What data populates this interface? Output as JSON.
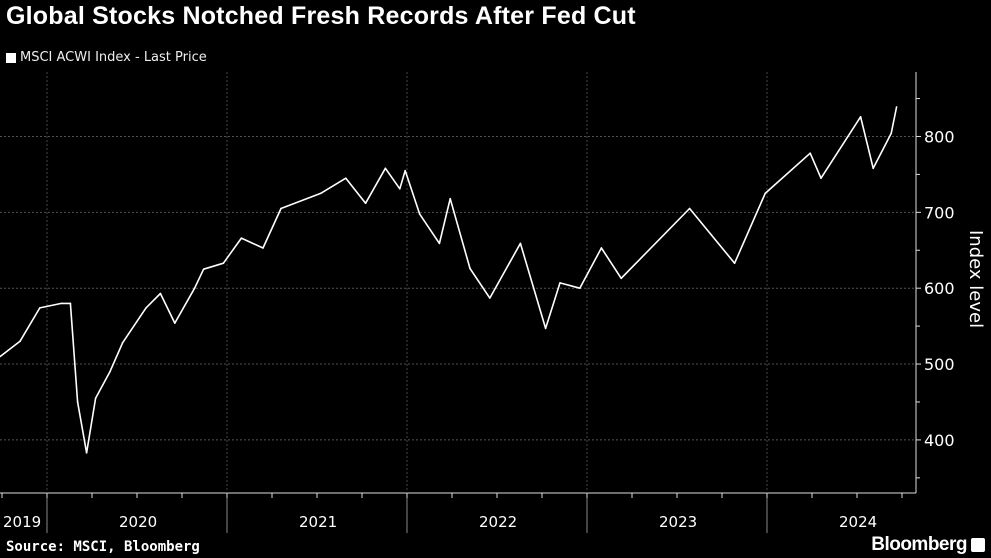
{
  "chart_data": {
    "type": "line",
    "title": "Global Stocks Notched Fresh Records After Fed Cut",
    "legend": [
      {
        "label": "MSCI ACWI Index - Last Price",
        "color": "#ffffff"
      }
    ],
    "legend_placement": "top-left",
    "ylabel": "Index level",
    "xlabel": "",
    "ylim": [
      330,
      885
    ],
    "yticks": [
      400,
      500,
      600,
      700,
      800
    ],
    "xlim": [
      2019.74,
      2024.85
    ],
    "xtick_labels": [
      "2019",
      "2020",
      "2021",
      "2022",
      "2023",
      "2024"
    ],
    "grid": true,
    "series": [
      {
        "name": "MSCI ACWI Index - Last Price",
        "x": [
          2019.74,
          2019.85,
          2019.96,
          2020.08,
          2020.13,
          2020.17,
          2020.22,
          2020.27,
          2020.35,
          2020.42,
          2020.55,
          2020.63,
          2020.71,
          2020.82,
          2020.87,
          2020.98,
          2021.08,
          2021.2,
          2021.3,
          2021.52,
          2021.66,
          2021.77,
          2021.88,
          2021.96,
          2021.99,
          2022.07,
          2022.18,
          2022.24,
          2022.35,
          2022.46,
          2022.63,
          2022.77,
          2022.85,
          2022.96,
          2023.08,
          2023.19,
          2023.57,
          2023.82,
          2023.99,
          2024.24,
          2024.3,
          2024.52,
          2024.59,
          2024.69,
          2024.72
        ],
        "values": [
          510,
          530,
          574,
          580,
          580,
          450,
          383,
          455,
          490,
          528,
          574,
          593,
          554,
          600,
          625,
          633,
          666,
          653,
          705,
          725,
          745,
          712,
          758,
          731,
          755,
          698,
          659,
          718,
          626,
          587,
          659,
          547,
          607,
          600,
          653,
          613,
          705,
          633,
          725,
          778,
          745,
          826,
          758,
          804,
          839
        ]
      }
    ]
  },
  "source": "Source: MSCI, Bloomberg",
  "brand": "Bloomberg"
}
